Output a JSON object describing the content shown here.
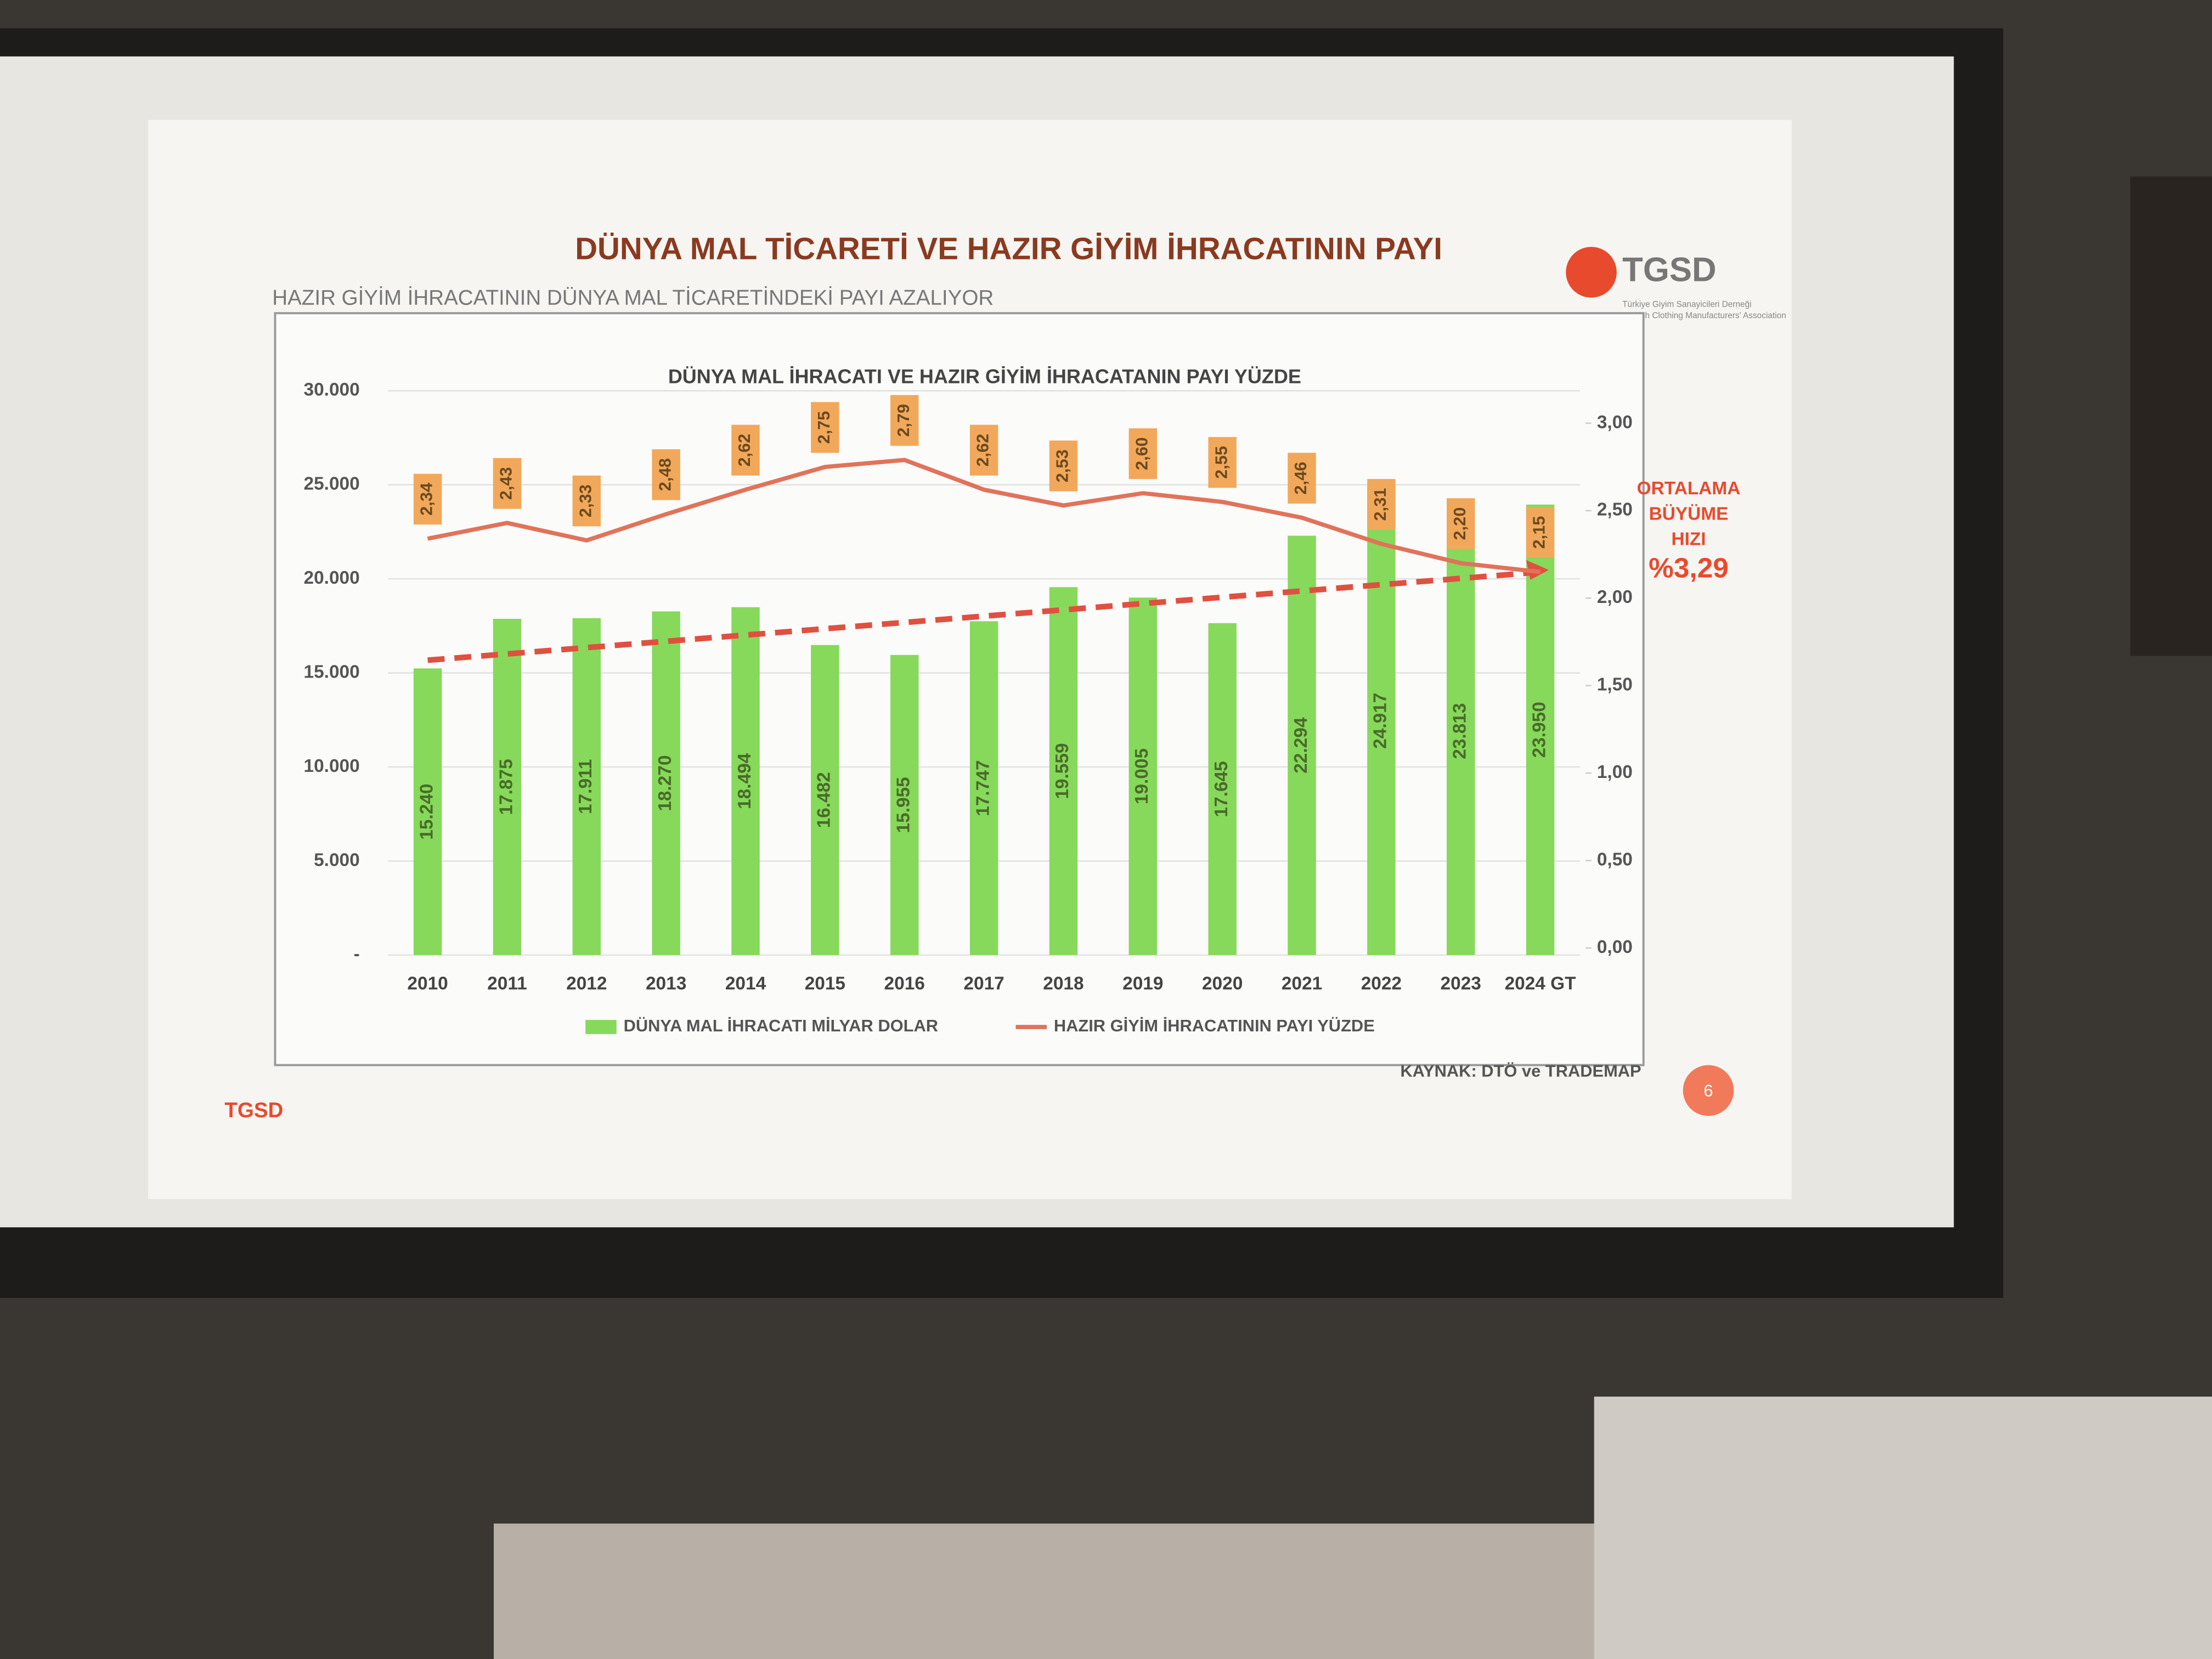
{
  "slide": {
    "title": "DÜNYA MAL TİCARETİ VE HAZIR GİYİM İHRACATININ PAYI",
    "subtitle": "HAZIR GİYİM İHRACATININ DÜNYA MAL TİCARETİNDEKİ PAYI AZALIYOR",
    "logo": "TGSD",
    "logo_caption": [
      "Türkiye Giyim Sanayicileri Derneği",
      "Turkish Clothing Manufacturers' Association"
    ],
    "source": "KAYNAK: DTÖ ve TRADEMAP",
    "footer": "TGSD",
    "page_number": 6
  },
  "chart_data": {
    "type": "bar-line",
    "title": "DÜNYA MAL İHRACATI VE HAZIR GİYİM İHRACATANIN PAYI YÜZDE",
    "categories": [
      "2010",
      "2011",
      "2012",
      "2013",
      "2014",
      "2015",
      "2016",
      "2017",
      "2018",
      "2019",
      "2020",
      "2021",
      "2022",
      "2023",
      "2024 GT"
    ],
    "series": [
      {
        "name": "DÜNYA MAL İHRACATI MİLYAR DOLAR",
        "color": "#86d95a",
        "type": "bar",
        "values": [
          15240,
          17875,
          17911,
          18270,
          18494,
          16482,
          15955,
          17747,
          19559,
          19005,
          17645,
          22294,
          24917,
          23813,
          23950
        ],
        "value_labels": [
          "15.240",
          "17.875",
          "17.911",
          "18.270",
          "18.494",
          "16.482",
          "15.955",
          "17.747",
          "19.559",
          "19.005",
          "17.645",
          "22.294",
          "24.917",
          "23.813",
          "23.950"
        ]
      },
      {
        "name": "HAZIR GİYİM İHRACATININ PAYI YÜZDE",
        "color": "#e0735a",
        "type": "line",
        "axis": "y2",
        "values": [
          2.34,
          2.43,
          2.33,
          2.48,
          2.62,
          2.75,
          2.79,
          2.62,
          2.53,
          2.6,
          2.55,
          2.46,
          2.31,
          2.2,
          2.15
        ],
        "value_labels": [
          "2,34",
          "2,43",
          "2,33",
          "2,48",
          "2,62",
          "2,75",
          "2,79",
          "2,62",
          "2,53",
          "2,60",
          "2,55",
          "2,46",
          "2,31",
          "2,20",
          "2,15"
        ]
      }
    ],
    "ylim": [
      0,
      30000
    ],
    "yticks": [
      {
        "value": 0,
        "label": "-"
      },
      {
        "value": 5000,
        "label": "5.000"
      },
      {
        "value": 10000,
        "label": "10.000"
      },
      {
        "value": 15000,
        "label": "15.000"
      },
      {
        "value": 20000,
        "label": "20.000"
      },
      {
        "value": 25000,
        "label": "25.000"
      },
      {
        "value": 30000,
        "label": "30.000"
      }
    ],
    "y2lim": [
      0,
      3
    ],
    "y2ticks": [
      {
        "value": 0,
        "label": "0,00"
      },
      {
        "value": 0.5,
        "label": "0,50"
      },
      {
        "value": 1,
        "label": "1,00"
      },
      {
        "value": 1.5,
        "label": "1,50"
      },
      {
        "value": 2,
        "label": "2,00"
      },
      {
        "value": 2.5,
        "label": "2,50"
      },
      {
        "value": 3,
        "label": "3,00"
      }
    ],
    "grid": true,
    "legend": "bottom",
    "annotations": [
      "ORTALAMA",
      "BÜYÜME",
      "HIZI",
      "%3,29"
    ]
  }
}
